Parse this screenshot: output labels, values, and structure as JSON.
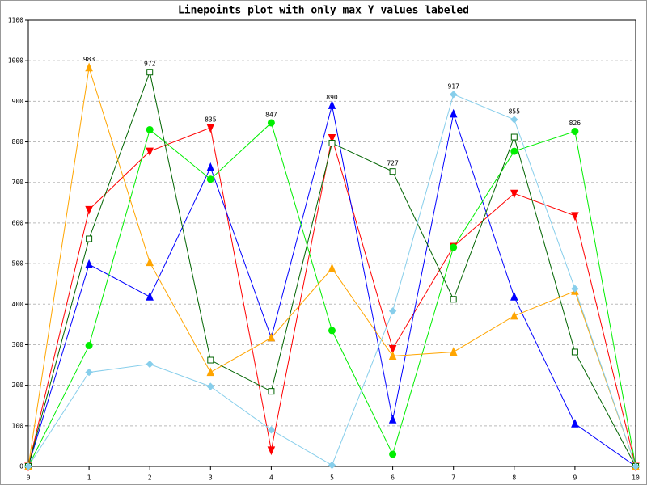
{
  "chart_data": {
    "type": "line",
    "title": "Linepoints plot with only max Y values labeled",
    "x": [
      0,
      1,
      2,
      3,
      4,
      5,
      6,
      7,
      8,
      9,
      10
    ],
    "series": [
      {
        "color": "#ff0000",
        "marker": "triangle-down",
        "values": [
          0,
          633,
          777,
          835,
          40,
          810,
          290,
          542,
          673,
          618,
          0
        ]
      },
      {
        "color": "#0000ff",
        "marker": "triangle-up",
        "values": [
          0,
          498,
          418,
          737,
          317,
          890,
          115,
          869,
          418,
          105,
          0
        ]
      },
      {
        "color": "#00ee00",
        "marker": "circle",
        "values": [
          0,
          298,
          830,
          708,
          847,
          335,
          30,
          540,
          777,
          826,
          0
        ]
      },
      {
        "color": "#006400",
        "marker": "square-open",
        "values": [
          0,
          561,
          972,
          262,
          185,
          797,
          727,
          412,
          812,
          282,
          0
        ]
      },
      {
        "color": "#ffa500",
        "marker": "triangle-up",
        "values": [
          0,
          983,
          503,
          232,
          317,
          488,
          272,
          282,
          371,
          432,
          0
        ]
      },
      {
        "color": "#87ceeb",
        "marker": "diamond",
        "values": [
          0,
          232,
          252,
          197,
          90,
          3,
          383,
          917,
          855,
          438,
          0
        ]
      }
    ],
    "label_max_only": true,
    "xlim": [
      0,
      10
    ],
    "xticks": [
      0,
      1,
      2,
      3,
      4,
      5,
      6,
      7,
      8,
      9,
      10
    ],
    "ylim": [
      0,
      1100
    ],
    "yticks": [
      0,
      100,
      200,
      300,
      400,
      500,
      600,
      700,
      800,
      900,
      1000,
      1100
    ],
    "grid": true
  }
}
